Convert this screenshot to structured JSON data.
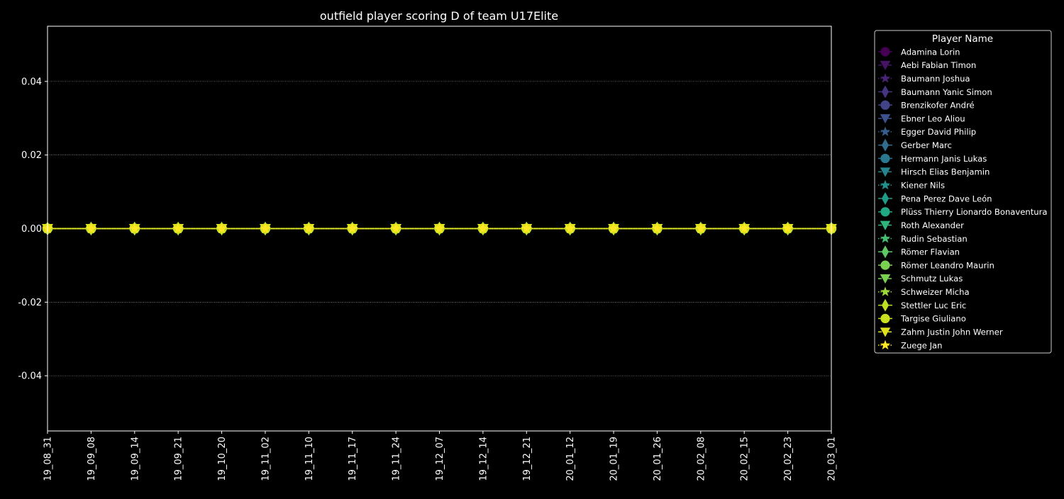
{
  "colors": {
    "background": "#000000",
    "foreground": "#ffffff",
    "grid": "#bbbbbb"
  },
  "chart_data": {
    "type": "line",
    "title": "outfield player scoring D of team U17Elite",
    "xlabel": "",
    "ylabel": "",
    "ylim": [
      -0.055,
      0.055
    ],
    "yticks": [
      -0.04,
      -0.02,
      0.0,
      0.02,
      0.04
    ],
    "grid": true,
    "legend_title": "Player Name",
    "legend_position": "outside-right",
    "x": [
      "19_08_31",
      "19_09_08",
      "19_09_14",
      "19_09_21",
      "19_10_20",
      "19_11_02",
      "19_11_10",
      "19_11_17",
      "19_11_24",
      "19_12_07",
      "19_12_14",
      "19_12_21",
      "20_01_12",
      "20_01_19",
      "20_01_26",
      "20_02_08",
      "20_02_15",
      "20_02_23",
      "20_03_01"
    ],
    "series": [
      {
        "name": "Adamina Lorin",
        "color": "#440154",
        "marker": "circle",
        "linestyle": "solid",
        "values": [
          0,
          0,
          0,
          0,
          0,
          0,
          0,
          0,
          0,
          0,
          0,
          0,
          0,
          0,
          0,
          0,
          0,
          0,
          0
        ]
      },
      {
        "name": "Aebi Fabian Timon",
        "color": "#471365",
        "marker": "triangle-down",
        "linestyle": "dashed",
        "values": [
          0,
          0,
          0,
          0,
          0,
          0,
          0,
          0,
          0,
          0,
          0,
          0,
          0,
          0,
          0,
          0,
          0,
          0,
          0
        ]
      },
      {
        "name": "Baumann Joshua",
        "color": "#482475",
        "marker": "star",
        "linestyle": "dotted",
        "values": [
          0,
          0,
          0,
          0,
          0,
          0,
          0,
          0,
          0,
          0,
          0,
          0,
          0,
          0,
          0,
          0,
          0,
          0,
          0
        ]
      },
      {
        "name": "Baumann Yanic Simon",
        "color": "#463480",
        "marker": "diamond",
        "linestyle": "solid",
        "values": [
          0,
          0,
          0,
          0,
          0,
          0,
          0,
          0,
          0,
          0,
          0,
          0,
          0,
          0,
          0,
          0,
          0,
          0,
          0
        ]
      },
      {
        "name": "Brenzikofer André",
        "color": "#414487",
        "marker": "circle",
        "linestyle": "solid",
        "values": [
          0,
          0,
          0,
          0,
          0,
          0,
          0,
          0,
          0,
          0,
          0,
          0,
          0,
          0,
          0,
          0,
          0,
          0,
          0
        ]
      },
      {
        "name": "Ebner Leo Aliou",
        "color": "#3b528b",
        "marker": "triangle-down",
        "linestyle": "dashed",
        "values": [
          0,
          0,
          0,
          0,
          0,
          0,
          0,
          0,
          0,
          0,
          0,
          0,
          0,
          0,
          0,
          0,
          0,
          0,
          0
        ]
      },
      {
        "name": "Egger David Philip",
        "color": "#355f8d",
        "marker": "star",
        "linestyle": "dotted",
        "values": [
          0,
          0,
          0,
          0,
          0,
          0,
          0,
          0,
          0,
          0,
          0,
          0,
          0,
          0,
          0,
          0,
          0,
          0,
          0
        ]
      },
      {
        "name": "Gerber Marc",
        "color": "#2f6c8e",
        "marker": "diamond",
        "linestyle": "solid",
        "values": [
          0,
          0,
          0,
          0,
          0,
          0,
          0,
          0,
          0,
          0,
          0,
          0,
          0,
          0,
          0,
          0,
          0,
          0,
          0
        ]
      },
      {
        "name": "Hermann Janis Lukas",
        "color": "#2a788e",
        "marker": "circle",
        "linestyle": "solid",
        "values": [
          0,
          0,
          0,
          0,
          0,
          0,
          0,
          0,
          0,
          0,
          0,
          0,
          0,
          0,
          0,
          0,
          0,
          0,
          0
        ]
      },
      {
        "name": "Hirsch Elias Benjamin",
        "color": "#25848e",
        "marker": "triangle-down",
        "linestyle": "dashed",
        "values": [
          0,
          0,
          0,
          0,
          0,
          0,
          0,
          0,
          0,
          0,
          0,
          0,
          0,
          0,
          0,
          0,
          0,
          0,
          0
        ]
      },
      {
        "name": "Kiener Nils",
        "color": "#21918c",
        "marker": "star",
        "linestyle": "dotted",
        "values": [
          0,
          0,
          0,
          0,
          0,
          0,
          0,
          0,
          0,
          0,
          0,
          0,
          0,
          0,
          0,
          0,
          0,
          0,
          0
        ]
      },
      {
        "name": "Pena Perez Dave León",
        "color": "#1e9c89",
        "marker": "diamond",
        "linestyle": "solid",
        "values": [
          0,
          0,
          0,
          0,
          0,
          0,
          0,
          0,
          0,
          0,
          0,
          0,
          0,
          0,
          0,
          0,
          0,
          0,
          0
        ]
      },
      {
        "name": "Plüss Thierry Lionardo Bonaventura",
        "color": "#22a884",
        "marker": "circle",
        "linestyle": "solid",
        "values": [
          0,
          0,
          0,
          0,
          0,
          0,
          0,
          0,
          0,
          0,
          0,
          0,
          0,
          0,
          0,
          0,
          0,
          0,
          0
        ]
      },
      {
        "name": "Roth Alexander",
        "color": "#2fb47c",
        "marker": "triangle-down",
        "linestyle": "dashed",
        "values": [
          0,
          0,
          0,
          0,
          0,
          0,
          0,
          0,
          0,
          0,
          0,
          0,
          0,
          0,
          0,
          0,
          0,
          0,
          0
        ]
      },
      {
        "name": "Rudin Sebastian",
        "color": "#44bf70",
        "marker": "star",
        "linestyle": "dotted",
        "values": [
          0,
          0,
          0,
          0,
          0,
          0,
          0,
          0,
          0,
          0,
          0,
          0,
          0,
          0,
          0,
          0,
          0,
          0,
          0
        ]
      },
      {
        "name": "Römer Flavian",
        "color": "#5ec962",
        "marker": "diamond",
        "linestyle": "solid",
        "values": [
          0,
          0,
          0,
          0,
          0,
          0,
          0,
          0,
          0,
          0,
          0,
          0,
          0,
          0,
          0,
          0,
          0,
          0,
          0
        ]
      },
      {
        "name": "Römer Leandro Maurin",
        "color": "#7ad151",
        "marker": "circle",
        "linestyle": "solid",
        "values": [
          0,
          0,
          0,
          0,
          0,
          0,
          0,
          0,
          0,
          0,
          0,
          0,
          0,
          0,
          0,
          0,
          0,
          0,
          0
        ]
      },
      {
        "name": "Schmutz Lukas",
        "color": "#7ad151",
        "marker": "triangle-down",
        "linestyle": "dashed",
        "values": [
          0,
          0,
          0,
          0,
          0,
          0,
          0,
          0,
          0,
          0,
          0,
          0,
          0,
          0,
          0,
          0,
          0,
          0,
          0
        ]
      },
      {
        "name": "Schweizer Micha",
        "color": "#9bd93c",
        "marker": "star",
        "linestyle": "dotted",
        "values": [
          0,
          0,
          0,
          0,
          0,
          0,
          0,
          0,
          0,
          0,
          0,
          0,
          0,
          0,
          0,
          0,
          0,
          0,
          0
        ]
      },
      {
        "name": "Stettler Luc Eric",
        "color": "#bddf26",
        "marker": "diamond",
        "linestyle": "solid",
        "values": [
          0,
          0,
          0,
          0,
          0,
          0,
          0,
          0,
          0,
          0,
          0,
          0,
          0,
          0,
          0,
          0,
          0,
          0,
          0
        ]
      },
      {
        "name": "Targise Giuliano",
        "color": "#c8e020",
        "marker": "circle",
        "linestyle": "solid",
        "values": [
          0,
          0,
          0,
          0,
          0,
          0,
          0,
          0,
          0,
          0,
          0,
          0,
          0,
          0,
          0,
          0,
          0,
          0,
          0
        ]
      },
      {
        "name": "Zahm Justin John Werner",
        "color": "#e0e31c",
        "marker": "triangle-down",
        "linestyle": "dashed",
        "values": [
          0,
          0,
          0,
          0,
          0,
          0,
          0,
          0,
          0,
          0,
          0,
          0,
          0,
          0,
          0,
          0,
          0,
          0,
          0
        ]
      },
      {
        "name": "Zuege Jan",
        "color": "#fde725",
        "marker": "star",
        "linestyle": "dotted",
        "values": [
          0,
          0,
          0,
          0,
          0,
          0,
          0,
          0,
          0,
          0,
          0,
          0,
          0,
          0,
          0,
          0,
          0,
          0,
          0
        ]
      }
    ]
  }
}
